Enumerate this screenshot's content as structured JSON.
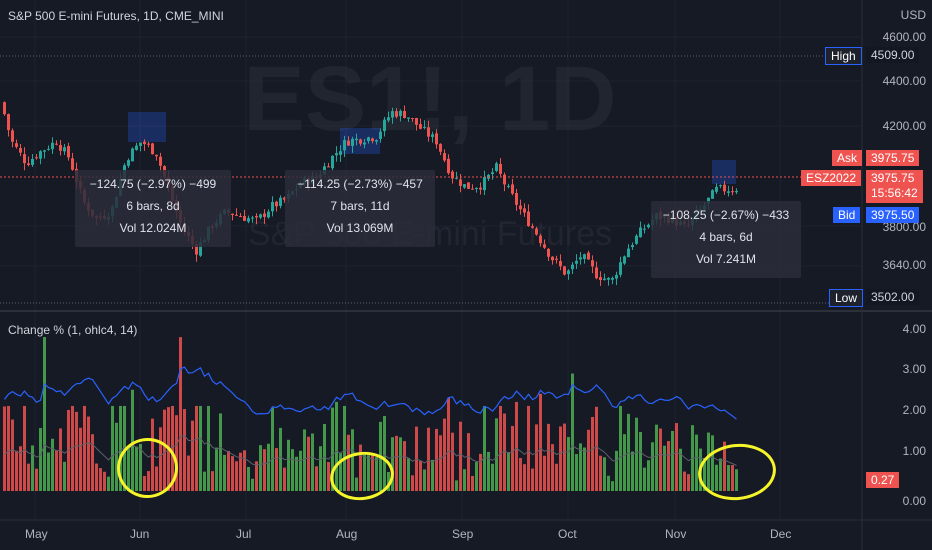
{
  "header": {
    "title": "S&P 500 E-mini Futures, 1D, CME_MINI"
  },
  "watermark": {
    "symbol": "ES1!, 1D",
    "name": "S&P 500 E-mini Futures"
  },
  "price_axis": {
    "currency": "USD",
    "ticks": [
      "4600.00",
      "4400.00",
      "4200.00",
      "3640.00"
    ],
    "hidden_tick": "3800.00"
  },
  "tags": {
    "high_label": "High",
    "high_value": "4509.00",
    "ask_label": "Ask",
    "ask_value": "3975.75",
    "symbol_label": "ESZ2022",
    "last_value": "3975.75",
    "countdown": "15:56:42",
    "bid_label": "Bid",
    "bid_value": "3975.50",
    "low_label": "Low",
    "low_value": "3502.00"
  },
  "indicator": {
    "title": "Change % (1, ohlc4, 14)",
    "ticks": [
      "4.00",
      "3.00",
      "2.00",
      "1.00",
      "0.00"
    ],
    "current_value": "0.27"
  },
  "time_axis": [
    "May",
    "Jun",
    "Jul",
    "Aug",
    "Sep",
    "Oct",
    "Nov",
    "Dec"
  ],
  "measurements": [
    {
      "line1": "−124.75 (−2.97%) −499",
      "line2": "6 bars, 8d",
      "line3": "Vol 12.024M"
    },
    {
      "line1": "−114.25 (−2.73%) −457",
      "line2": "7 bars, 11d",
      "line3": "Vol 13.069M"
    },
    {
      "line1": "−108.25 (−2.67%) −433",
      "line2": "4 bars, 6d",
      "line3": "Vol 7.241M"
    }
  ],
  "colors": {
    "background": "#161a25",
    "up": "#26a69a",
    "up_bar": "#4caf50",
    "down": "#ef5350",
    "bid": "#2962ff",
    "highlight": "#f5f52a",
    "avg_line": "#2962ff"
  },
  "chart_data": [
    {
      "type": "candlestick",
      "title": "S&P 500 E-mini Futures, 1D, CME_MINI",
      "ylim": [
        3502,
        4600
      ],
      "y_unit": "USD",
      "x_labels": [
        "May",
        "Jun",
        "Jul",
        "Aug",
        "Sep",
        "Oct",
        "Nov",
        "Dec"
      ],
      "price_path": [
        [
          0,
          4330
        ],
        [
          10,
          4170
        ],
        [
          25,
          4080
        ],
        [
          40,
          4130
        ],
        [
          55,
          4170
        ],
        [
          68,
          4100
        ],
        [
          82,
          3920
        ],
        [
          95,
          3850
        ],
        [
          110,
          3880
        ],
        [
          125,
          4100
        ],
        [
          140,
          4170
        ],
        [
          155,
          4120
        ],
        [
          168,
          3960
        ],
        [
          180,
          3820
        ],
        [
          195,
          3720
        ],
        [
          210,
          3820
        ],
        [
          225,
          3880
        ],
        [
          240,
          3860
        ],
        [
          255,
          3840
        ],
        [
          270,
          3900
        ],
        [
          285,
          3930
        ],
        [
          300,
          4000
        ],
        [
          315,
          4020
        ],
        [
          330,
          4100
        ],
        [
          345,
          4170
        ],
        [
          360,
          4180
        ],
        [
          375,
          4190
        ],
        [
          390,
          4290
        ],
        [
          405,
          4280
        ],
        [
          420,
          4220
        ],
        [
          435,
          4170
        ],
        [
          450,
          4030
        ],
        [
          465,
          3980
        ],
        [
          480,
          3990
        ],
        [
          495,
          4060
        ],
        [
          505,
          3980
        ],
        [
          520,
          3880
        ],
        [
          535,
          3790
        ],
        [
          550,
          3690
        ],
        [
          565,
          3620
        ],
        [
          580,
          3700
        ],
        [
          595,
          3620
        ],
        [
          610,
          3590
        ],
        [
          625,
          3720
        ],
        [
          640,
          3800
        ],
        [
          655,
          3860
        ],
        [
          670,
          3850
        ],
        [
          685,
          3810
        ],
        [
          700,
          3890
        ],
        [
          715,
          3970
        ],
        [
          728,
          3972
        ],
        [
          737,
          3975.75
        ]
      ],
      "high": 4509,
      "low": 3502,
      "last": 3975.75
    },
    {
      "type": "bar",
      "title": "Change % (1, ohlc4, 14)",
      "ylim": [
        0,
        4
      ],
      "current_value": 0.27,
      "notable_values": [
        3.8,
        3.1,
        3.0,
        2.9,
        2.5,
        2.4,
        2.2
      ]
    }
  ]
}
